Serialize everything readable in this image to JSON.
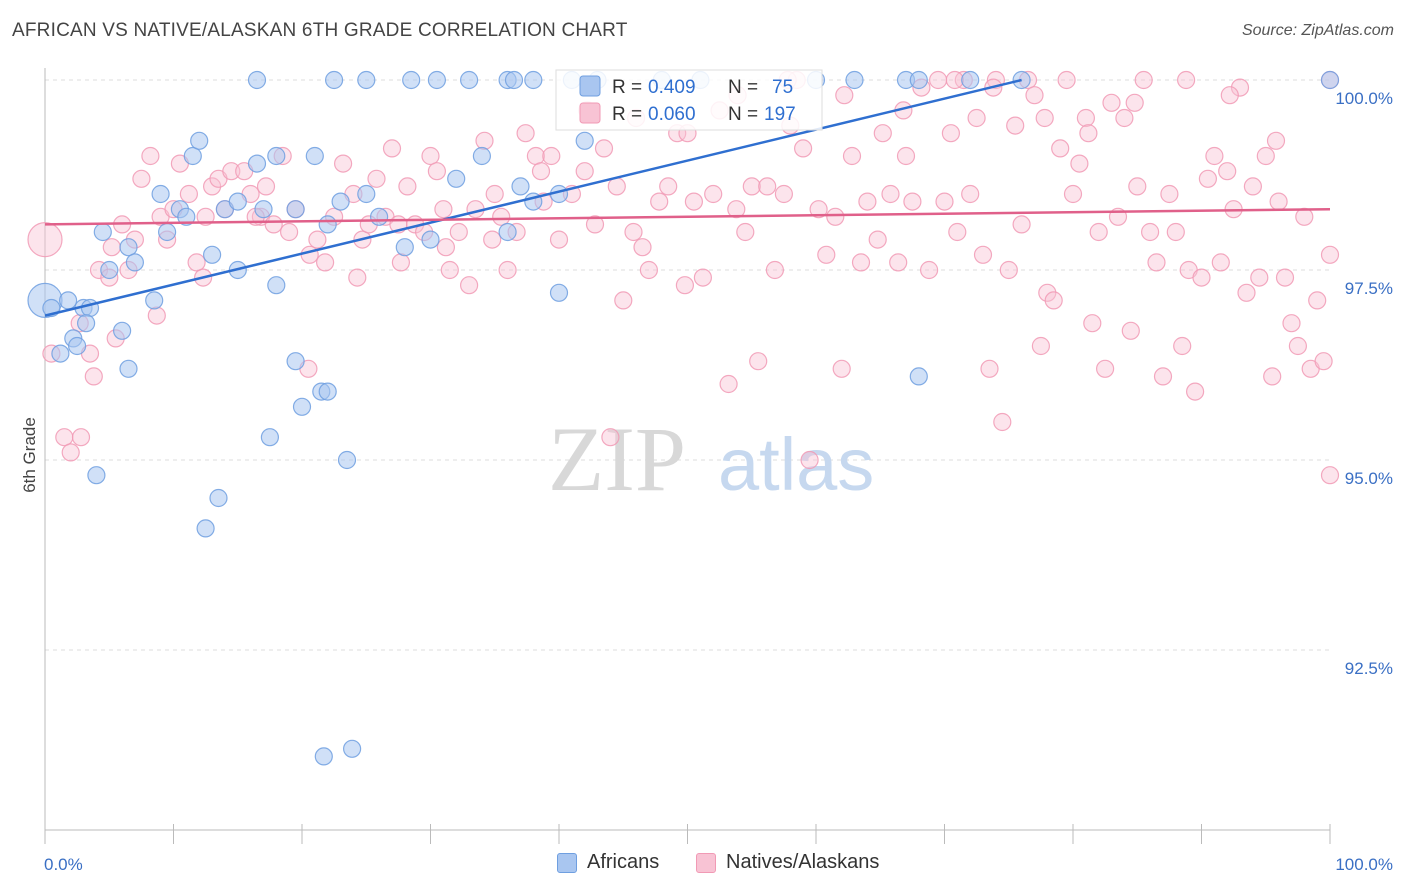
{
  "title": "AFRICAN VS NATIVE/ALASKAN 6TH GRADE CORRELATION CHART",
  "source": "Source: ZipAtlas.com",
  "watermark": {
    "zip": "ZIP",
    "atlas": "atlas"
  },
  "chart_data": {
    "type": "scatter",
    "ylabel": "6th Grade",
    "xlim": [
      0,
      100
    ],
    "ylim": [
      90.0,
      100.4
    ],
    "x_tick_labels": [
      "0.0%",
      "100.0%"
    ],
    "y_ticks": [
      {
        "value": 100.0,
        "label": "100.0%"
      },
      {
        "value": 97.5,
        "label": "97.5%"
      },
      {
        "value": 95.0,
        "label": "95.0%"
      },
      {
        "value": 92.5,
        "label": "92.5%"
      }
    ],
    "grid": "horizontal-dashed",
    "legend_stats": [
      {
        "r_label": "R = ",
        "r_value": "0.409",
        "n_label": "N = ",
        "n_value": "75"
      },
      {
        "r_label": "R = ",
        "r_value": "0.060",
        "n_label": "N = ",
        "n_value": "197"
      }
    ],
    "series": [
      {
        "name": "Africans",
        "color": "#6f9fe0",
        "fill": "#a9c6f0",
        "line_color": "#2f6fd0",
        "trend": {
          "x0": 0,
          "y0": 96.9,
          "x1": 76,
          "y1": 100.0
        },
        "points": [
          [
            0,
            97.1
          ],
          [
            0.5,
            97.0
          ],
          [
            1.8,
            97.1
          ],
          [
            3,
            97.0
          ],
          [
            2.2,
            96.6
          ],
          [
            1.2,
            96.4
          ],
          [
            3.5,
            97.0
          ],
          [
            5,
            97.5
          ],
          [
            4.5,
            98.0
          ],
          [
            6.5,
            97.8
          ],
          [
            7,
            97.6
          ],
          [
            6,
            96.7
          ],
          [
            3.2,
            96.8
          ],
          [
            2.5,
            96.5
          ],
          [
            9,
            98.5
          ],
          [
            10.5,
            98.3
          ],
          [
            11.5,
            99.0
          ],
          [
            12,
            99.2
          ],
          [
            14,
            98.3
          ],
          [
            15,
            98.4
          ],
          [
            16.5,
            98.9
          ],
          [
            17,
            98.3
          ],
          [
            18,
            99.0
          ],
          [
            19.5,
            98.3
          ],
          [
            21,
            99.0
          ],
          [
            22,
            98.1
          ],
          [
            23,
            98.4
          ],
          [
            25,
            98.5
          ],
          [
            26,
            98.2
          ],
          [
            28,
            97.8
          ],
          [
            30,
            97.9
          ],
          [
            32,
            98.7
          ],
          [
            34,
            99.0
          ],
          [
            36,
            98.0
          ],
          [
            37,
            98.6
          ],
          [
            38,
            98.4
          ],
          [
            16.5,
            100.0
          ],
          [
            22.5,
            100.0
          ],
          [
            25,
            100.0
          ],
          [
            28.5,
            100.0
          ],
          [
            30.5,
            100.0
          ],
          [
            33,
            100.0
          ],
          [
            36,
            100.0
          ],
          [
            36.5,
            100.0
          ],
          [
            38,
            100.0
          ],
          [
            41,
            100.0
          ],
          [
            43,
            100.0
          ],
          [
            48,
            100.0
          ],
          [
            51,
            100.0
          ],
          [
            60,
            100.0
          ],
          [
            63,
            100.0
          ],
          [
            67,
            100.0
          ],
          [
            68,
            100.0
          ],
          [
            72,
            100.0
          ],
          [
            76,
            100.0
          ],
          [
            100,
            100.0
          ],
          [
            42,
            99.2
          ],
          [
            40,
            98.5
          ],
          [
            8.5,
            97.1
          ],
          [
            9.5,
            98.0
          ],
          [
            11,
            98.2
          ],
          [
            13,
            97.7
          ],
          [
            15,
            97.5
          ],
          [
            18,
            97.3
          ],
          [
            4,
            94.8
          ],
          [
            6.5,
            96.2
          ],
          [
            12.5,
            94.1
          ],
          [
            13.5,
            94.5
          ],
          [
            17.5,
            95.3
          ],
          [
            19.5,
            96.3
          ],
          [
            20,
            95.7
          ],
          [
            21.5,
            95.9
          ],
          [
            22,
            95.9
          ],
          [
            23.5,
            95.0
          ],
          [
            21.7,
            91.1
          ],
          [
            23.9,
            91.2
          ],
          [
            40,
            97.2
          ],
          [
            68,
            96.1
          ]
        ]
      },
      {
        "name": "Natives/Alaskans",
        "color": "#f19ab5",
        "fill": "#f8c3d4",
        "line_color": "#e0608a",
        "trend": {
          "x0": 0,
          "y0": 98.1,
          "x1": 100,
          "y1": 98.3
        },
        "points": [
          [
            0,
            97.9
          ],
          [
            0.5,
            96.4
          ],
          [
            1.5,
            95.3
          ],
          [
            2,
            95.1
          ],
          [
            2.8,
            95.3
          ],
          [
            3.5,
            96.4
          ],
          [
            3.8,
            96.1
          ],
          [
            4.2,
            97.5
          ],
          [
            5,
            97.4
          ],
          [
            5.5,
            96.6
          ],
          [
            6,
            98.1
          ],
          [
            6.5,
            97.5
          ],
          [
            7,
            97.9
          ],
          [
            7.5,
            98.7
          ],
          [
            8.2,
            99.0
          ],
          [
            9,
            98.2
          ],
          [
            9.5,
            97.9
          ],
          [
            10,
            98.3
          ],
          [
            10.5,
            98.9
          ],
          [
            11.2,
            98.5
          ],
          [
            11.8,
            97.6
          ],
          [
            12.5,
            98.2
          ],
          [
            13,
            98.6
          ],
          [
            13.5,
            98.7
          ],
          [
            14,
            98.3
          ],
          [
            14.5,
            98.8
          ],
          [
            15.5,
            98.8
          ],
          [
            16,
            98.5
          ],
          [
            16.8,
            98.2
          ],
          [
            17.2,
            98.6
          ],
          [
            17.8,
            98.1
          ],
          [
            18.5,
            99.0
          ],
          [
            19,
            98.0
          ],
          [
            19.5,
            98.3
          ],
          [
            20.5,
            96.2
          ],
          [
            21.2,
            97.9
          ],
          [
            21.8,
            97.6
          ],
          [
            22.5,
            98.2
          ],
          [
            23.2,
            98.9
          ],
          [
            24,
            98.5
          ],
          [
            24.7,
            97.9
          ],
          [
            25.2,
            98.1
          ],
          [
            25.8,
            98.7
          ],
          [
            26.5,
            98.2
          ],
          [
            27,
            99.1
          ],
          [
            27.5,
            98.1
          ],
          [
            28.2,
            98.6
          ],
          [
            28.8,
            98.1
          ],
          [
            29.5,
            98.0
          ],
          [
            30,
            99.0
          ],
          [
            30.5,
            98.8
          ],
          [
            31,
            98.3
          ],
          [
            31.5,
            97.5
          ],
          [
            32.2,
            98.0
          ],
          [
            33,
            97.3
          ],
          [
            33.5,
            98.3
          ],
          [
            34.2,
            99.2
          ],
          [
            34.8,
            97.9
          ],
          [
            35.5,
            98.2
          ],
          [
            36,
            97.5
          ],
          [
            36.7,
            98.0
          ],
          [
            37.4,
            99.3
          ],
          [
            38.2,
            99.0
          ],
          [
            38.8,
            98.4
          ],
          [
            39.4,
            99.0
          ],
          [
            40,
            97.9
          ],
          [
            41,
            98.5
          ],
          [
            42,
            98.8
          ],
          [
            42.8,
            98.1
          ],
          [
            43.5,
            99.1
          ],
          [
            44,
            95.3
          ],
          [
            44.5,
            98.6
          ],
          [
            45,
            97.1
          ],
          [
            45.8,
            98.0
          ],
          [
            46.5,
            97.8
          ],
          [
            47,
            97.5
          ],
          [
            47.8,
            98.4
          ],
          [
            48.5,
            98.6
          ],
          [
            49.2,
            99.3
          ],
          [
            49.8,
            97.3
          ],
          [
            50.5,
            98.4
          ],
          [
            51.2,
            97.4
          ],
          [
            52,
            98.5
          ],
          [
            52.5,
            99.6
          ],
          [
            53.2,
            96.0
          ],
          [
            53.8,
            98.3
          ],
          [
            54.5,
            98.0
          ],
          [
            55,
            98.6
          ],
          [
            55.5,
            96.3
          ],
          [
            56.2,
            98.6
          ],
          [
            56.8,
            97.5
          ],
          [
            57.5,
            98.5
          ],
          [
            58,
            99.4
          ],
          [
            58.5,
            100.0
          ],
          [
            59,
            99.1
          ],
          [
            59.5,
            95.0
          ],
          [
            60.2,
            98.3
          ],
          [
            60.8,
            97.7
          ],
          [
            61.5,
            98.2
          ],
          [
            62,
            96.2
          ],
          [
            62.8,
            99.0
          ],
          [
            63.5,
            97.6
          ],
          [
            64,
            98.4
          ],
          [
            64.8,
            97.9
          ],
          [
            65.2,
            99.3
          ],
          [
            65.8,
            98.5
          ],
          [
            66.4,
            97.6
          ],
          [
            67,
            99.0
          ],
          [
            67.5,
            98.4
          ],
          [
            68.2,
            99.9
          ],
          [
            68.8,
            97.5
          ],
          [
            69.5,
            100.0
          ],
          [
            70,
            98.4
          ],
          [
            70.5,
            99.3
          ],
          [
            71,
            98.0
          ],
          [
            71.5,
            100.0
          ],
          [
            72,
            98.5
          ],
          [
            72.5,
            99.5
          ],
          [
            73,
            97.7
          ],
          [
            73.5,
            96.2
          ],
          [
            74,
            100.0
          ],
          [
            74.5,
            95.5
          ],
          [
            75,
            97.5
          ],
          [
            75.5,
            99.4
          ],
          [
            76,
            98.1
          ],
          [
            76.5,
            100.0
          ],
          [
            77,
            99.8
          ],
          [
            77.5,
            96.5
          ],
          [
            78,
            97.2
          ],
          [
            78.5,
            97.1
          ],
          [
            79,
            99.1
          ],
          [
            79.5,
            100.0
          ],
          [
            80,
            98.5
          ],
          [
            80.5,
            98.9
          ],
          [
            81,
            99.5
          ],
          [
            81.5,
            96.8
          ],
          [
            82,
            98.0
          ],
          [
            82.5,
            96.2
          ],
          [
            83,
            99.7
          ],
          [
            83.5,
            98.2
          ],
          [
            84,
            99.5
          ],
          [
            84.5,
            96.7
          ],
          [
            85,
            98.6
          ],
          [
            85.5,
            100.0
          ],
          [
            86,
            98.0
          ],
          [
            86.5,
            97.6
          ],
          [
            87,
            96.1
          ],
          [
            87.5,
            98.5
          ],
          [
            88,
            98.0
          ],
          [
            88.5,
            96.5
          ],
          [
            89,
            97.5
          ],
          [
            89.5,
            95.9
          ],
          [
            90,
            97.4
          ],
          [
            90.5,
            98.7
          ],
          [
            91,
            99.0
          ],
          [
            91.5,
            97.6
          ],
          [
            92,
            98.8
          ],
          [
            92.5,
            98.3
          ],
          [
            93,
            99.9
          ],
          [
            93.5,
            97.2
          ],
          [
            94,
            98.6
          ],
          [
            94.5,
            97.4
          ],
          [
            95,
            99.0
          ],
          [
            95.5,
            96.1
          ],
          [
            96,
            98.4
          ],
          [
            96.5,
            97.4
          ],
          [
            97,
            96.8
          ],
          [
            97.5,
            96.5
          ],
          [
            98,
            98.2
          ],
          [
            98.5,
            96.2
          ],
          [
            99,
            97.1
          ],
          [
            99.5,
            96.3
          ],
          [
            100,
            97.7
          ],
          [
            100,
            94.8
          ],
          [
            100,
            100.0
          ],
          [
            95.8,
            99.2
          ],
          [
            92.2,
            99.8
          ],
          [
            88.8,
            100.0
          ],
          [
            84.8,
            99.7
          ],
          [
            81.2,
            99.3
          ],
          [
            77.8,
            99.5
          ],
          [
            73.8,
            99.9
          ],
          [
            70.8,
            100.0
          ],
          [
            66.8,
            99.6
          ],
          [
            62.2,
            99.8
          ],
          [
            57.8,
            100.0
          ],
          [
            53.9,
            99.8
          ],
          [
            50,
            99.3
          ],
          [
            46,
            99.5
          ],
          [
            42.2,
            99.6
          ],
          [
            38.6,
            98.8
          ],
          [
            35,
            98.5
          ],
          [
            31.2,
            97.8
          ],
          [
            27.7,
            97.6
          ],
          [
            24.3,
            97.4
          ],
          [
            20.6,
            97.7
          ],
          [
            16.4,
            98.2
          ],
          [
            12.3,
            97.4
          ],
          [
            8.7,
            96.9
          ],
          [
            5.2,
            97.8
          ],
          [
            2.7,
            96.8
          ]
        ]
      }
    ]
  }
}
